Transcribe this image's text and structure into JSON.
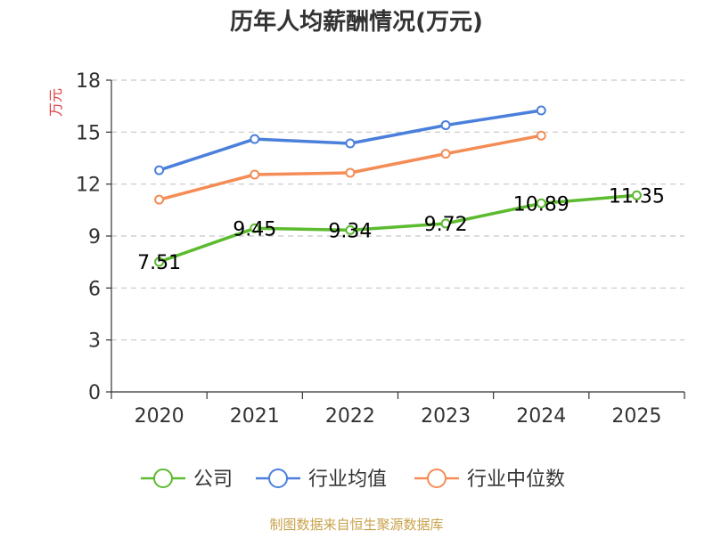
{
  "chart_data": {
    "type": "line",
    "title": "历年人均薪酬情况(万元)",
    "ylabel": "万元",
    "xlabel": "",
    "categories": [
      "2020",
      "2021",
      "2022",
      "2023",
      "2024",
      "2025"
    ],
    "ylim": [
      0,
      18
    ],
    "yticks": [
      0,
      3,
      6,
      9,
      12,
      15,
      18
    ],
    "grid": true,
    "legend_position": "bottom",
    "series": [
      {
        "name": "公司",
        "color": "#5dbb2f",
        "values": [
          7.51,
          9.45,
          9.34,
          9.72,
          10.89,
          11.35
        ],
        "labels": [
          "7.51",
          "9.45",
          "9.34",
          "9.72",
          "10.89",
          "11.35"
        ]
      },
      {
        "name": "行业均值",
        "color": "#4a7fdb",
        "values": [
          12.8,
          14.6,
          14.35,
          15.4,
          16.25,
          null
        ]
      },
      {
        "name": "行业中位数",
        "color": "#f58c55",
        "values": [
          11.1,
          12.55,
          12.65,
          13.75,
          14.8,
          null
        ]
      }
    ]
  },
  "source": "制图数据来自恒生聚源数据库"
}
